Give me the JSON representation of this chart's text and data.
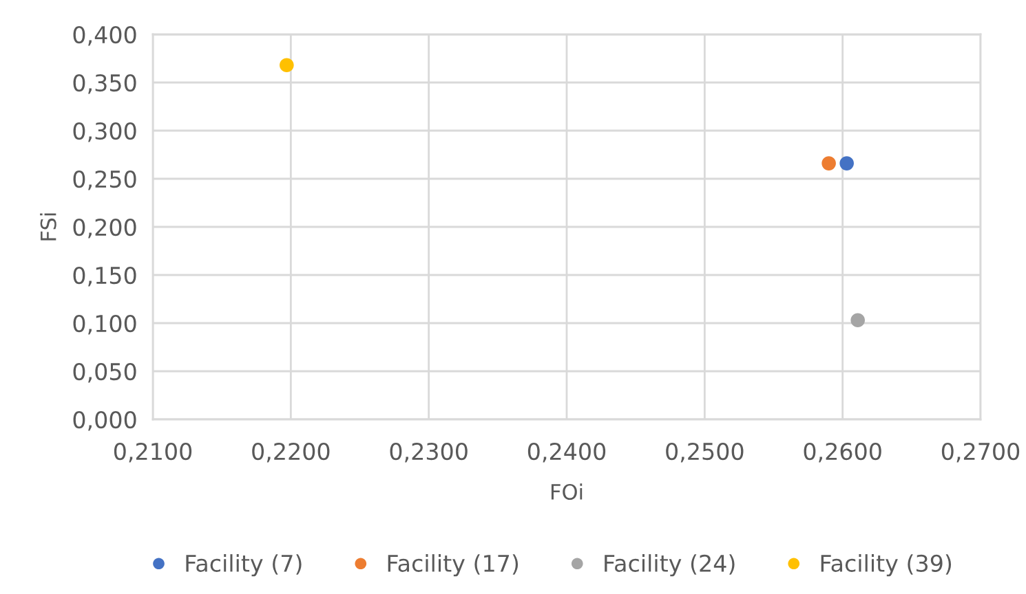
{
  "chart_data": {
    "type": "scatter",
    "xlabel": "FOi",
    "ylabel": "FSi",
    "series": [
      {
        "name": "Facility (7)",
        "color": "#4472c4",
        "x": [
          0.2603
        ],
        "values": [
          0.266
        ]
      },
      {
        "name": "Facility (17)",
        "color": "#ed7d31",
        "x": [
          0.259
        ],
        "values": [
          0.266
        ]
      },
      {
        "name": "Facility (24)",
        "color": "#a5a5a5",
        "x": [
          0.2611
        ],
        "values": [
          0.103
        ]
      },
      {
        "name": "Facility (39)",
        "color": "#ffc000",
        "x": [
          0.2197
        ],
        "values": [
          0.368
        ]
      }
    ],
    "xlim": [
      0.21,
      0.27
    ],
    "xticks": [
      {
        "value": 0.21,
        "label": "0,2100"
      },
      {
        "value": 0.22,
        "label": "0,2200"
      },
      {
        "value": 0.23,
        "label": "0,2300"
      },
      {
        "value": 0.24,
        "label": "0,2400"
      },
      {
        "value": 0.25,
        "label": "0,2500"
      },
      {
        "value": 0.26,
        "label": "0,2600"
      },
      {
        "value": 0.27,
        "label": "0,2700"
      }
    ],
    "ylim": [
      0,
      0.4
    ],
    "yticks": [
      {
        "value": 0,
        "label": "0,000"
      },
      {
        "value": 0.05,
        "label": "0,050"
      },
      {
        "value": 0.1,
        "label": "0,100"
      },
      {
        "value": 0.15,
        "label": "0,150"
      },
      {
        "value": 0.2,
        "label": "0,200"
      },
      {
        "value": 0.25,
        "label": "0,250"
      },
      {
        "value": 0.3,
        "label": "0,300"
      },
      {
        "value": 0.35,
        "label": "0,350"
      },
      {
        "value": 0.4,
        "label": "0,400"
      }
    ],
    "grid": true,
    "legend": "bottom",
    "marker": "circle"
  }
}
